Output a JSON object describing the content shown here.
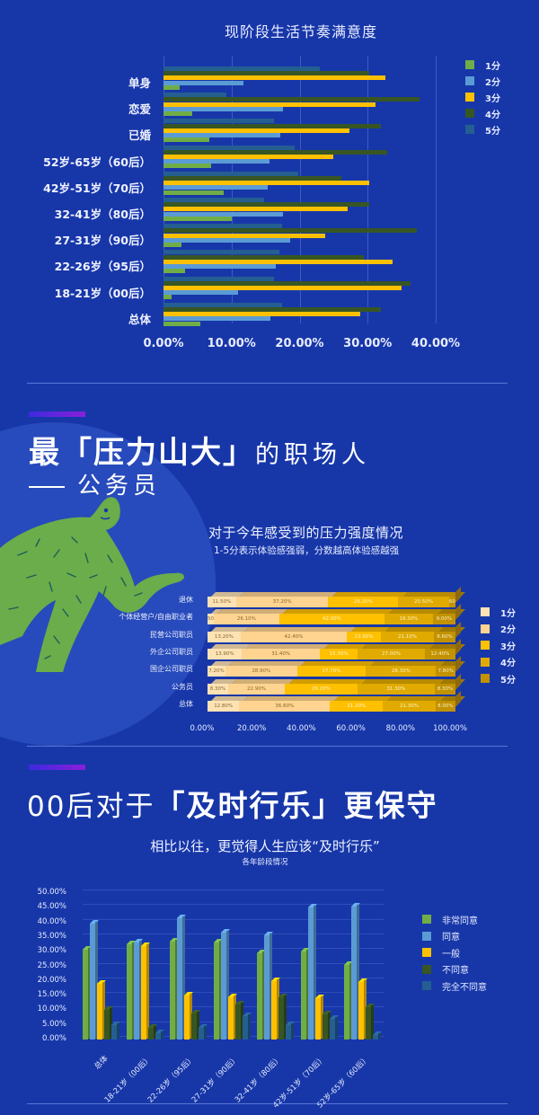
{
  "section1": {
    "title": "现阶段生活节奏满意度"
  },
  "section2": {
    "heading_bold": "最「压力山大」",
    "heading_light": "的职场人",
    "heading_sub": "公务员",
    "chart_title": "对于今年感受到的压力强度情况",
    "chart_subtitle": "1-5分表示体验感强弱，分数越高体验感越强"
  },
  "section3": {
    "heading_light": "00后对于",
    "heading_bold": "「及时行乐」更保守",
    "chart_title": "相比以往，更觉得人生应该“及时行乐”",
    "chart_subtitle": "各年龄段情况"
  },
  "chart_data": [
    {
      "type": "bar",
      "orientation": "horizontal",
      "title": "现阶段生活节奏满意度",
      "xlabel": "",
      "ylabel": "",
      "xlim": [
        0,
        40
      ],
      "x_ticks": [
        "0.00%",
        "10.00%",
        "20.00%",
        "30.00%",
        "40.00%"
      ],
      "grid": true,
      "legend_position": "right",
      "categories": [
        "单身",
        "恋爱",
        "已婚",
        "52岁-65岁（60后）",
        "42岁-51岁（70后）",
        "32-41岁（80后）",
        "27-31岁（90后）",
        "22-26岁（95后）",
        "18-21岁（00后）",
        "总体"
      ],
      "series": [
        {
          "name": "1分",
          "color": "#70ad47",
          "values": [
            2.4,
            4.2,
            6.7,
            7.0,
            8.8,
            10.0,
            2.6,
            3.2,
            1.2,
            5.4
          ]
        },
        {
          "name": "2分",
          "color": "#5b9bd5",
          "values": [
            11.8,
            17.6,
            17.2,
            15.6,
            15.3,
            17.5,
            18.6,
            16.5,
            10.9,
            15.7
          ]
        },
        {
          "name": "3分",
          "color": "#ffc000",
          "values": [
            32.6,
            31.1,
            27.3,
            24.9,
            30.2,
            27.0,
            23.7,
            33.7,
            35.0,
            28.9
          ]
        },
        {
          "name": "4分",
          "color": "#375623",
          "values": [
            30.2,
            37.6,
            32.0,
            32.9,
            26.2,
            30.2,
            37.2,
            29.4,
            36.3,
            32.0
          ]
        },
        {
          "name": "5分",
          "color": "#255e91",
          "values": [
            23.0,
            9.3,
            16.2,
            19.3,
            19.8,
            14.8,
            17.4,
            17.0,
            16.3,
            17.4
          ]
        }
      ]
    },
    {
      "type": "bar",
      "orientation": "horizontal",
      "stacked": "percent",
      "title": "对于今年感受到的压力强度情况",
      "subtitle": "1-5分表示体验感强弱，分数越高体验感越强",
      "xlim": [
        0,
        100
      ],
      "x_ticks": [
        "0.00%",
        "20.00%",
        "40.00%",
        "60.00%",
        "80.00%",
        "100.00%"
      ],
      "legend_position": "right",
      "categories": [
        "退休",
        "个体经营户/自由职业者",
        "民营公司职员",
        "外企公司职员",
        "国企公司职员",
        "公务员",
        "总体"
      ],
      "series": [
        {
          "name": "1分",
          "color": "#fde2b4",
          "values": [
            11.5,
            2.5,
            13.2,
            13.9,
            7.2,
            8.3,
            12.8
          ]
        },
        {
          "name": "2分",
          "color": "#ffd490",
          "values": [
            37.2,
            26.1,
            42.4,
            31.4,
            28.9,
            22.9,
            36.6
          ]
        },
        {
          "name": "3分",
          "color": "#ffc000",
          "values": [
            28.2,
            42.0,
            13.6,
            15.3,
            27.7,
            29.2,
            21.2
          ]
        },
        {
          "name": "4分",
          "color": "#e0aa00",
          "values": [
            20.5,
            19.3,
            21.1,
            27.0,
            28.3,
            31.3,
            21.3
          ]
        },
        {
          "name": "5分",
          "color": "#c29200",
          "values": [
            2.6,
            9.0,
            8.6,
            12.4,
            7.8,
            8.3,
            8.0
          ]
        }
      ]
    },
    {
      "type": "bar",
      "orientation": "vertical",
      "style": "3d-clustered",
      "title": "相比以往，更觉得人生应该“及时行乐”",
      "subtitle": "各年龄段情况",
      "ylim": [
        0,
        50
      ],
      "y_ticks": [
        "0.00%",
        "5.00%",
        "10.00%",
        "15.00%",
        "20.00%",
        "25.00%",
        "30.00%",
        "35.00%",
        "40.00%",
        "45.00%",
        "50.00%"
      ],
      "grid": true,
      "legend_position": "right",
      "categories": [
        "总体",
        "18-21岁（00后）",
        "22-26岁（95后）",
        "27-31岁（90后）",
        "32-41岁（80后）",
        "42岁-51岁（70后）",
        "52岁-65岁（60后）"
      ],
      "series": [
        {
          "name": "非常同意",
          "color": "#70ad47",
          "values": [
            30.8,
            32.5,
            33.5,
            33.0,
            29.5,
            30.0,
            25.5
          ]
        },
        {
          "name": "同意",
          "color": "#5b9bd5",
          "values": [
            39.5,
            33.0,
            41.5,
            36.5,
            35.5,
            45.0,
            45.5
          ]
        },
        {
          "name": "一般",
          "color": "#ffc000",
          "values": [
            19.0,
            32.0,
            15.0,
            14.5,
            20.0,
            14.0,
            19.5
          ]
        },
        {
          "name": "不同意",
          "color": "#375623",
          "values": [
            10.0,
            4.0,
            9.0,
            12.0,
            14.5,
            8.5,
            11.0
          ]
        },
        {
          "name": "完全不同意",
          "color": "#255e91",
          "values": [
            5.0,
            2.0,
            4.0,
            8.0,
            5.0,
            7.0,
            1.5
          ]
        }
      ]
    }
  ]
}
